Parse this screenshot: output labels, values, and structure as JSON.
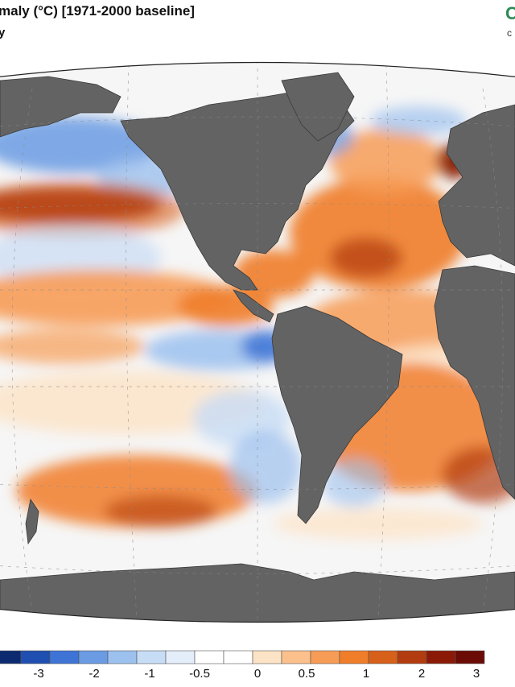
{
  "title": "maly (°C) [1971-2000 baseline]",
  "subtitle": "y",
  "logo": {
    "mark": "C",
    "sub": "c"
  },
  "map": {
    "projection": "robinson",
    "ocean_base_color": "#f6f6f6",
    "land_color": "#636363",
    "anomaly_regions": [
      {
        "name": "north-pacific-warm-band",
        "anomaly": 3.2
      },
      {
        "name": "gulf-of-alaska-cool",
        "anomaly": -1.5
      },
      {
        "name": "north-atlantic-warm",
        "anomaly": 1.6
      },
      {
        "name": "baltic-warm",
        "anomaly": 3.1
      },
      {
        "name": "eastern-equatorial-pacific-cool",
        "anomaly": -0.8
      },
      {
        "name": "south-pacific-warm",
        "anomaly": 1.8
      },
      {
        "name": "south-atlantic-warm",
        "anomaly": 1.7
      },
      {
        "name": "peru-coast-cool",
        "anomaly": -1.2
      }
    ]
  },
  "colorbar": {
    "colors": [
      "#0b2a6f",
      "#1f4fb0",
      "#3d74d6",
      "#6a9be3",
      "#9cc1ee",
      "#c7dcf5",
      "#e4eefb",
      "#ffffff",
      "#ffffff",
      "#fde3c5",
      "#fbc08c",
      "#f79c56",
      "#f07d2a",
      "#d7601a",
      "#b23c0f",
      "#8a1a06",
      "#6b0b05"
    ],
    "tick_labels": [
      "-3",
      "-2",
      "-1",
      "-0.5",
      "0",
      "0.5",
      "1",
      "2",
      "3"
    ]
  }
}
